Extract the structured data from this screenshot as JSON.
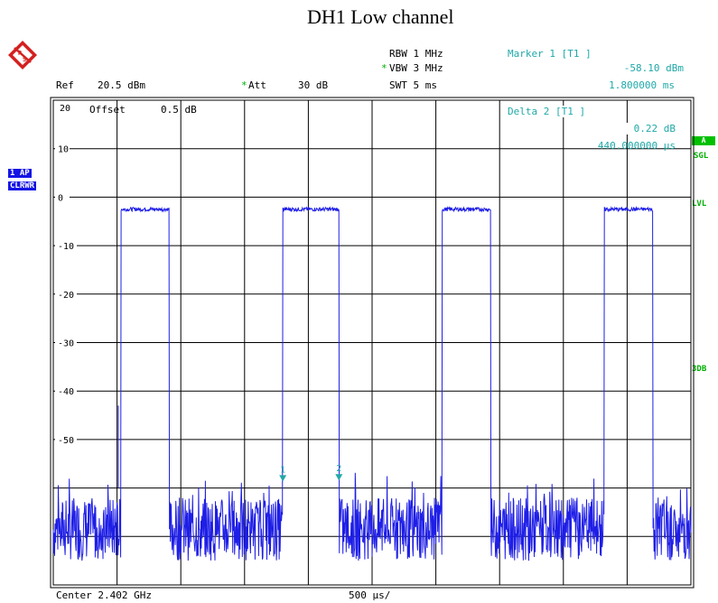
{
  "title": "DH1 Low channel",
  "settings": {
    "rbw": "RBW 1 MHz",
    "vbw": "VBW 3 MHz",
    "swt": "SWT 5 ms",
    "ref": "Ref",
    "ref_value": "20.5 dBm",
    "att": "Att",
    "att_value": "30 dB",
    "asterisk": "*"
  },
  "marker1": {
    "label": "Marker 1 [T1 ]",
    "level": "-58.10 dBm",
    "time": "1.800000 ms"
  },
  "delta2": {
    "label": "Delta 2 [T1 ]",
    "level": "0.22 dB",
    "time": "440.000000 µs"
  },
  "offset": {
    "label": "Offset",
    "value": "0.5 dB"
  },
  "left_badges": [
    "1 AP",
    "CLRWR"
  ],
  "right_badges": {
    "a": "A",
    "sgl": "SGL",
    "lvl": "LVL",
    "db3": "3DB"
  },
  "footer": {
    "center": "Center 2.402 GHz",
    "per_div": "500 µs/"
  },
  "colors": {
    "trace": "#1e1ee6",
    "marker": "#20a8a8",
    "grid": "#000000",
    "badge_blue": "#1414e6",
    "badge_green": "#00c000"
  },
  "chart_data": {
    "type": "line",
    "title": "DH1 Low channel",
    "xlabel": "",
    "ylabel": "",
    "xlim": [
      0,
      5
    ],
    "x_unit": "ms",
    "ylim": [
      -80,
      20
    ],
    "y_unit": "dBm",
    "y_ticks": [
      20,
      10,
      0,
      -10,
      -20,
      -30,
      -40,
      -50
    ],
    "grid": true,
    "series": [
      {
        "values_description_pulses": "bursts",
        "pulses": [
          {
            "start": 0.53,
            "end": 0.91,
            "level": -2.5
          },
          {
            "start": 1.8,
            "end": 2.24,
            "level": -2.5
          },
          {
            "start": 3.05,
            "end": 3.43,
            "level": -2.5
          },
          {
            "start": 4.32,
            "end": 4.7,
            "level": -2.5
          }
        ],
        "noise_floor": [
          -75,
          -62
        ]
      }
    ],
    "markers": [
      {
        "label": "1",
        "x": 1.8,
        "y": -58.1
      },
      {
        "label": "2",
        "x": 2.24,
        "y": -57.88
      }
    ]
  }
}
